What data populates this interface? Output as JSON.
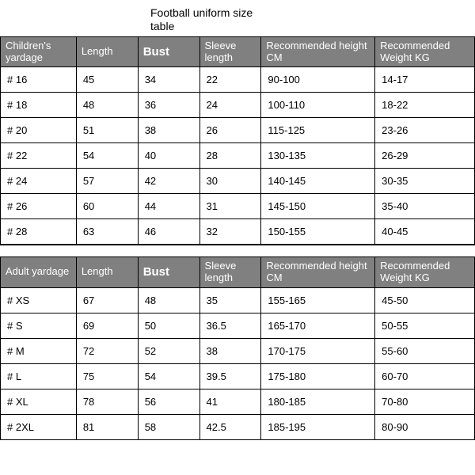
{
  "title": "Football uniform size table",
  "colors": {
    "header_bg": "#808080",
    "header_fg": "#ffffff",
    "cell_bg": "#ffffff",
    "cell_fg": "#000000",
    "border": "#000000",
    "page_bg": "#ffffff"
  },
  "col_widths_pct": [
    16,
    13,
    13,
    13,
    24,
    21
  ],
  "children_table": {
    "columns": [
      "Children's yardage",
      "Length",
      "Bust",
      "Sleeve length",
      "Recommended height CM",
      "Recommended Weight KG"
    ],
    "rows": [
      [
        "# 16",
        "45",
        "34",
        "22",
        "90-100",
        "14-17"
      ],
      [
        "# 18",
        "48",
        "36",
        "24",
        "100-110",
        "18-22"
      ],
      [
        "# 20",
        "51",
        "38",
        "26",
        "115-125",
        "23-26"
      ],
      [
        "# 22",
        "54",
        "40",
        "28",
        "130-135",
        "26-29"
      ],
      [
        "# 24",
        "57",
        "42",
        "30",
        "140-145",
        "30-35"
      ],
      [
        "# 26",
        "60",
        "44",
        "31",
        "145-150",
        "35-40"
      ],
      [
        "# 28",
        "63",
        "46",
        "32",
        "150-155",
        "40-45"
      ]
    ]
  },
  "adult_table": {
    "columns": [
      "Adult yardage",
      "Length",
      "Bust",
      "Sleeve length",
      "Recommended height CM",
      "Recommended Weight KG"
    ],
    "rows": [
      [
        "# XS",
        "67",
        "48",
        "35",
        "155-165",
        "45-50"
      ],
      [
        "# S",
        "69",
        "50",
        "36.5",
        "165-170",
        "50-55"
      ],
      [
        "# M",
        "72",
        "52",
        "38",
        "170-175",
        "55-60"
      ],
      [
        "# L",
        "75",
        "54",
        "39.5",
        "175-180",
        "60-70"
      ],
      [
        "# XL",
        "78",
        "56",
        "41",
        "180-185",
        "70-80"
      ],
      [
        "# 2XL",
        "81",
        "58",
        "42.5",
        "185-195",
        "80-90"
      ]
    ]
  }
}
